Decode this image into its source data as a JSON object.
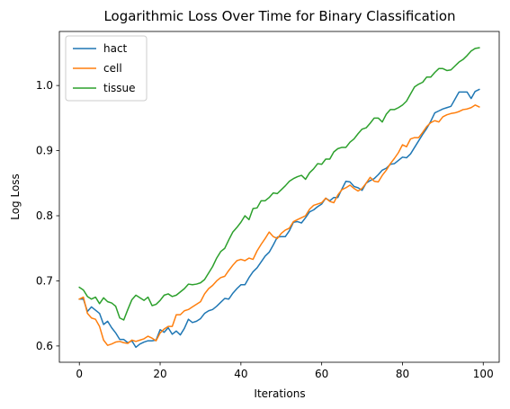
{
  "chart_data": {
    "type": "line",
    "title": "Logarithmic Loss Over Time for Binary Classification",
    "xlabel": "Iterations",
    "ylabel": "Log Loss",
    "xlim": [
      -4.95,
      103.95
    ],
    "ylim": [
      0.575,
      1.083
    ],
    "xticks": [
      0,
      20,
      40,
      60,
      80,
      100
    ],
    "yticks": [
      0.6,
      0.7,
      0.8,
      0.9,
      1.0
    ],
    "xtick_labels": [
      "0",
      "20",
      "40",
      "60",
      "80",
      "100"
    ],
    "ytick_labels": [
      "0.6",
      "0.7",
      "0.8",
      "0.9",
      "1.0"
    ],
    "grid": false,
    "legend_position": "top-left",
    "x_start": 0,
    "x_step": 1,
    "series": [
      {
        "name": "hact",
        "color": "#1f77b4",
        "values": [
          0.672,
          0.672,
          0.653,
          0.66,
          0.655,
          0.65,
          0.633,
          0.638,
          0.628,
          0.62,
          0.61,
          0.61,
          0.605,
          0.608,
          0.598,
          0.603,
          0.606,
          0.608,
          0.608,
          0.609,
          0.625,
          0.621,
          0.628,
          0.618,
          0.623,
          0.617,
          0.627,
          0.641,
          0.636,
          0.638,
          0.642,
          0.65,
          0.654,
          0.656,
          0.661,
          0.667,
          0.673,
          0.672,
          0.681,
          0.688,
          0.694,
          0.694,
          0.705,
          0.714,
          0.72,
          0.729,
          0.738,
          0.744,
          0.755,
          0.767,
          0.768,
          0.768,
          0.777,
          0.79,
          0.791,
          0.789,
          0.797,
          0.806,
          0.809,
          0.814,
          0.818,
          0.827,
          0.823,
          0.828,
          0.828,
          0.841,
          0.853,
          0.852,
          0.845,
          0.843,
          0.839,
          0.85,
          0.854,
          0.857,
          0.863,
          0.87,
          0.873,
          0.879,
          0.88,
          0.885,
          0.89,
          0.889,
          0.895,
          0.905,
          0.915,
          0.925,
          0.934,
          0.945,
          0.958,
          0.961,
          0.964,
          0.966,
          0.968,
          0.979,
          0.99,
          0.99,
          0.99,
          0.98,
          0.991,
          0.994
        ]
      },
      {
        "name": "cell",
        "color": "#ff7f0e",
        "values": [
          0.672,
          0.675,
          0.65,
          0.643,
          0.641,
          0.63,
          0.609,
          0.601,
          0.603,
          0.606,
          0.607,
          0.605,
          0.604,
          0.609,
          0.607,
          0.609,
          0.611,
          0.615,
          0.612,
          0.608,
          0.62,
          0.626,
          0.63,
          0.63,
          0.648,
          0.648,
          0.654,
          0.656,
          0.66,
          0.664,
          0.668,
          0.68,
          0.688,
          0.693,
          0.7,
          0.705,
          0.707,
          0.716,
          0.724,
          0.731,
          0.733,
          0.731,
          0.735,
          0.733,
          0.746,
          0.756,
          0.765,
          0.775,
          0.768,
          0.765,
          0.773,
          0.778,
          0.781,
          0.791,
          0.794,
          0.797,
          0.8,
          0.81,
          0.816,
          0.818,
          0.82,
          0.827,
          0.822,
          0.82,
          0.832,
          0.84,
          0.843,
          0.847,
          0.842,
          0.838,
          0.842,
          0.85,
          0.859,
          0.853,
          0.852,
          0.862,
          0.87,
          0.88,
          0.888,
          0.897,
          0.909,
          0.906,
          0.918,
          0.92,
          0.92,
          0.928,
          0.937,
          0.943,
          0.946,
          0.944,
          0.952,
          0.955,
          0.957,
          0.958,
          0.96,
          0.963,
          0.964,
          0.966,
          0.97,
          0.967
        ]
      },
      {
        "name": "tissue",
        "color": "#2ca02c",
        "values": [
          0.69,
          0.686,
          0.676,
          0.672,
          0.675,
          0.665,
          0.674,
          0.668,
          0.666,
          0.661,
          0.643,
          0.64,
          0.656,
          0.671,
          0.678,
          0.674,
          0.67,
          0.675,
          0.662,
          0.664,
          0.67,
          0.678,
          0.68,
          0.676,
          0.678,
          0.683,
          0.688,
          0.695,
          0.694,
          0.695,
          0.697,
          0.702,
          0.712,
          0.722,
          0.735,
          0.745,
          0.75,
          0.763,
          0.775,
          0.782,
          0.79,
          0.8,
          0.794,
          0.811,
          0.812,
          0.823,
          0.823,
          0.828,
          0.835,
          0.834,
          0.84,
          0.846,
          0.853,
          0.857,
          0.86,
          0.862,
          0.856,
          0.866,
          0.872,
          0.88,
          0.879,
          0.887,
          0.887,
          0.898,
          0.903,
          0.905,
          0.905,
          0.913,
          0.918,
          0.926,
          0.933,
          0.935,
          0.942,
          0.95,
          0.95,
          0.944,
          0.956,
          0.963,
          0.963,
          0.966,
          0.97,
          0.976,
          0.987,
          0.998,
          1.002,
          1.005,
          1.013,
          1.013,
          1.02,
          1.026,
          1.026,
          1.023,
          1.024,
          1.03,
          1.036,
          1.04,
          1.046,
          1.053,
          1.057,
          1.058
        ]
      }
    ]
  }
}
